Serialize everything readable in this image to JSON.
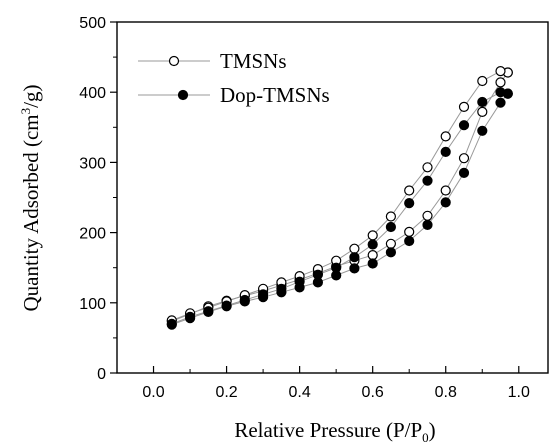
{
  "chart_data": {
    "type": "scatter",
    "title": "",
    "xlabel": "Relative Pressure (P/P",
    "xlabel_sub": "0",
    "xlabel_end": ")",
    "ylabel": "Quantity Adsorbed (cm",
    "ylabel_sup": "3",
    "ylabel_end": "/g)",
    "xlim": [
      -0.1,
      1.08
    ],
    "ylim": [
      0,
      500
    ],
    "xticks": [
      "0.0",
      "0.2",
      "0.4",
      "0.6",
      "0.8",
      "1.0"
    ],
    "xtick_values": [
      0.0,
      0.2,
      0.4,
      0.6,
      0.8,
      1.0
    ],
    "yticks": [
      "0",
      "100",
      "200",
      "300",
      "400",
      "500"
    ],
    "ytick_values": [
      0,
      100,
      200,
      300,
      400,
      500
    ],
    "grid": false,
    "legend_position": "top-left",
    "series": [
      {
        "name": "TMSNs",
        "marker": "open-circle",
        "color": "#000000",
        "line_color": "#999999",
        "adsorption": [
          [
            0.05,
            74
          ],
          [
            0.1,
            84
          ],
          [
            0.15,
            95
          ],
          [
            0.2,
            103
          ],
          [
            0.25,
            110
          ],
          [
            0.3,
            117
          ],
          [
            0.35,
            125
          ],
          [
            0.4,
            133
          ],
          [
            0.45,
            142
          ],
          [
            0.5,
            152
          ],
          [
            0.55,
            160
          ],
          [
            0.6,
            168
          ],
          [
            0.65,
            184
          ],
          [
            0.7,
            201
          ],
          [
            0.75,
            224
          ],
          [
            0.8,
            260
          ],
          [
            0.85,
            306
          ],
          [
            0.9,
            372
          ],
          [
            0.95,
            414
          ],
          [
            0.97,
            428
          ]
        ],
        "desorption": [
          [
            0.97,
            428
          ],
          [
            0.95,
            430
          ],
          [
            0.9,
            416
          ],
          [
            0.85,
            379
          ],
          [
            0.8,
            337
          ],
          [
            0.75,
            293
          ],
          [
            0.7,
            260
          ],
          [
            0.65,
            223
          ],
          [
            0.6,
            196
          ],
          [
            0.55,
            177
          ],
          [
            0.5,
            160
          ],
          [
            0.45,
            148
          ],
          [
            0.4,
            138
          ],
          [
            0.35,
            129
          ],
          [
            0.3,
            120
          ],
          [
            0.25,
            111
          ],
          [
            0.2,
            102
          ],
          [
            0.15,
            93
          ],
          [
            0.1,
            85
          ],
          [
            0.05,
            75
          ]
        ]
      },
      {
        "name": "Dop-TMSNs",
        "marker": "filled-circle",
        "color": "#000000",
        "line_color": "#999999",
        "adsorption": [
          [
            0.05,
            69
          ],
          [
            0.1,
            78
          ],
          [
            0.15,
            87
          ],
          [
            0.2,
            95
          ],
          [
            0.25,
            102
          ],
          [
            0.3,
            108
          ],
          [
            0.35,
            115
          ],
          [
            0.4,
            122
          ],
          [
            0.45,
            129
          ],
          [
            0.5,
            139
          ],
          [
            0.55,
            149
          ],
          [
            0.6,
            156
          ],
          [
            0.65,
            172
          ],
          [
            0.7,
            188
          ],
          [
            0.75,
            211
          ],
          [
            0.8,
            243
          ],
          [
            0.85,
            285
          ],
          [
            0.9,
            345
          ],
          [
            0.95,
            385
          ],
          [
            0.97,
            398
          ]
        ],
        "desorption": [
          [
            0.97,
            398
          ],
          [
            0.95,
            400
          ],
          [
            0.9,
            386
          ],
          [
            0.85,
            353
          ],
          [
            0.8,
            315
          ],
          [
            0.75,
            274
          ],
          [
            0.7,
            242
          ],
          [
            0.65,
            208
          ],
          [
            0.6,
            183
          ],
          [
            0.55,
            165
          ],
          [
            0.5,
            150
          ],
          [
            0.45,
            140
          ],
          [
            0.4,
            130
          ],
          [
            0.35,
            120
          ],
          [
            0.3,
            112
          ],
          [
            0.25,
            104
          ],
          [
            0.2,
            96
          ],
          [
            0.15,
            88
          ],
          [
            0.1,
            80
          ],
          [
            0.05,
            70
          ]
        ]
      }
    ]
  }
}
